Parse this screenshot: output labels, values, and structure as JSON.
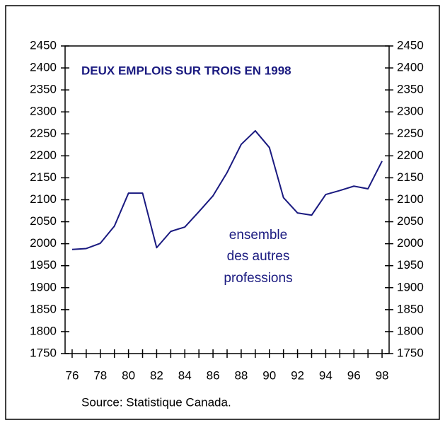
{
  "chart_data": {
    "type": "line",
    "title": "DEUX EMPLOIS SUR TROIS EN 1998",
    "annotation": [
      "ensemble",
      "des autres",
      "professions"
    ],
    "source": "Source: Statistique Canada.",
    "x": [
      76,
      77,
      78,
      79,
      80,
      81,
      82,
      83,
      84,
      85,
      86,
      87,
      88,
      89,
      90,
      91,
      92,
      93,
      94,
      95,
      96,
      97,
      98
    ],
    "series": [
      {
        "color": "#1a1a80",
        "values": [
          1987,
          1989,
          2001,
          2040,
          2115,
          2115,
          1991,
          2028,
          2038,
          2073,
          2109,
          2162,
          2226,
          2257,
          2219,
          2105,
          2070,
          2065,
          2112,
          2121,
          2131,
          2125,
          2188
        ]
      }
    ],
    "xlim": [
      75.5,
      98.5
    ],
    "xticks": [
      76,
      78,
      80,
      82,
      84,
      86,
      88,
      90,
      92,
      94,
      96,
      98
    ],
    "xminorticks": [
      77,
      79,
      81,
      83,
      85,
      87,
      89,
      91,
      93,
      95,
      97
    ],
    "ylim": [
      1750,
      2450
    ],
    "yticks": [
      1750,
      1800,
      1850,
      1900,
      1950,
      2000,
      2050,
      2100,
      2150,
      2200,
      2250,
      2300,
      2350,
      2400,
      2450
    ],
    "y2lim": [
      1750,
      2450
    ],
    "y2ticks": [
      1750,
      1800,
      1850,
      1900,
      1950,
      2000,
      2050,
      2100,
      2150,
      2200,
      2250,
      2300,
      2350,
      2400,
      2450
    ]
  }
}
